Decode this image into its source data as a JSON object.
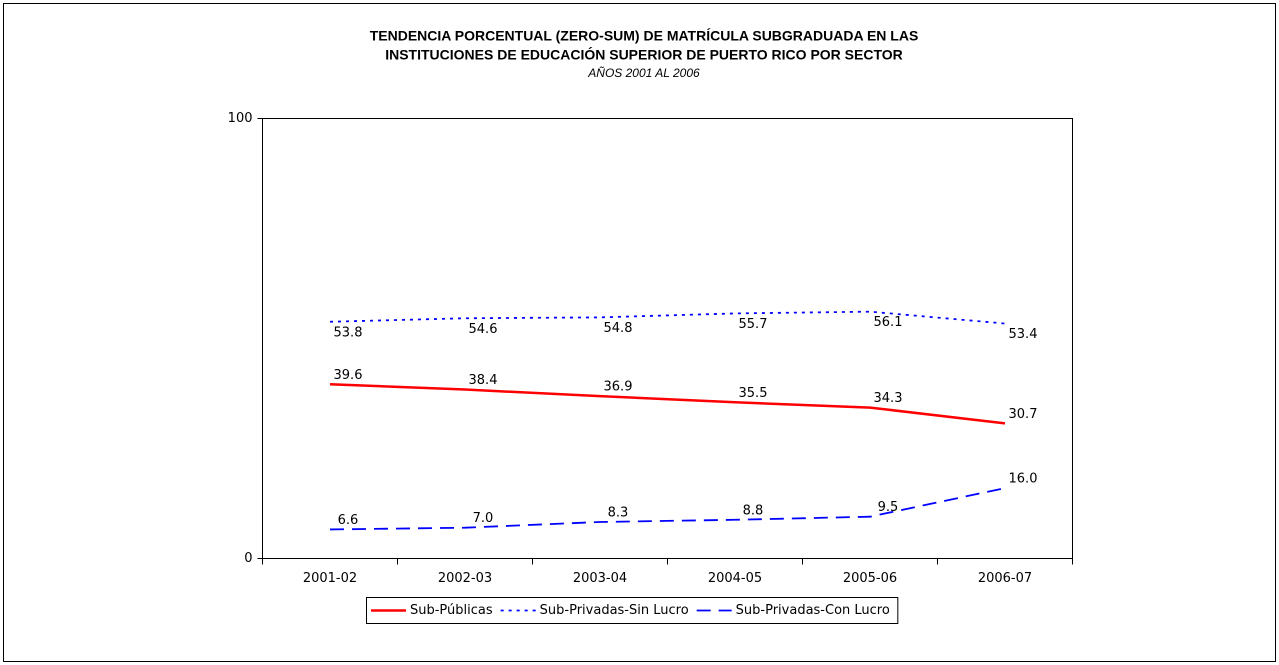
{
  "chart_data": {
    "type": "line",
    "title": [
      "TENDENCIA PORCENTUAL (ZERO-SUM) DE MATRÍCULA SUBGRADUADA EN LAS",
      "INSTITUCIONES DE EDUCACIÓN SUPERIOR DE PUERTO RICO POR SECTOR"
    ],
    "subtitle": "AÑOS 2001 AL 2006",
    "categories": [
      "2001-02",
      "2002-03",
      "2003-04",
      "2004-05",
      "2005-06",
      "2006-07"
    ],
    "series": [
      {
        "name": "Sub-Públicas",
        "color": "#ff0000",
        "dash": "solid",
        "values": [
          39.6,
          38.4,
          36.9,
          35.5,
          34.3,
          30.7
        ],
        "value_labels": [
          "39.6",
          "38.4",
          "36.9",
          "35.5",
          "34.3",
          "30.7"
        ]
      },
      {
        "name": "Sub-Privadas-Sin Lucro",
        "color": "#0000ff",
        "dash": "dotted",
        "values": [
          53.8,
          54.6,
          54.8,
          55.7,
          56.1,
          53.4
        ],
        "value_labels": [
          "53.8",
          "54.6",
          "54.8",
          "55.7",
          "56.1",
          "53.4"
        ]
      },
      {
        "name": "Sub-Privadas-Con Lucro",
        "color": "#0000ff",
        "dash": "dashed",
        "values": [
          6.6,
          7.0,
          8.3,
          8.8,
          9.5,
          16.0
        ],
        "value_labels": [
          "6.6",
          "7.0",
          "8.3",
          "8.8",
          "9.5",
          "16.0"
        ]
      }
    ],
    "ylim": [
      0,
      100
    ],
    "yticks": [
      0,
      100
    ],
    "grid": false,
    "legend": "bottom"
  }
}
